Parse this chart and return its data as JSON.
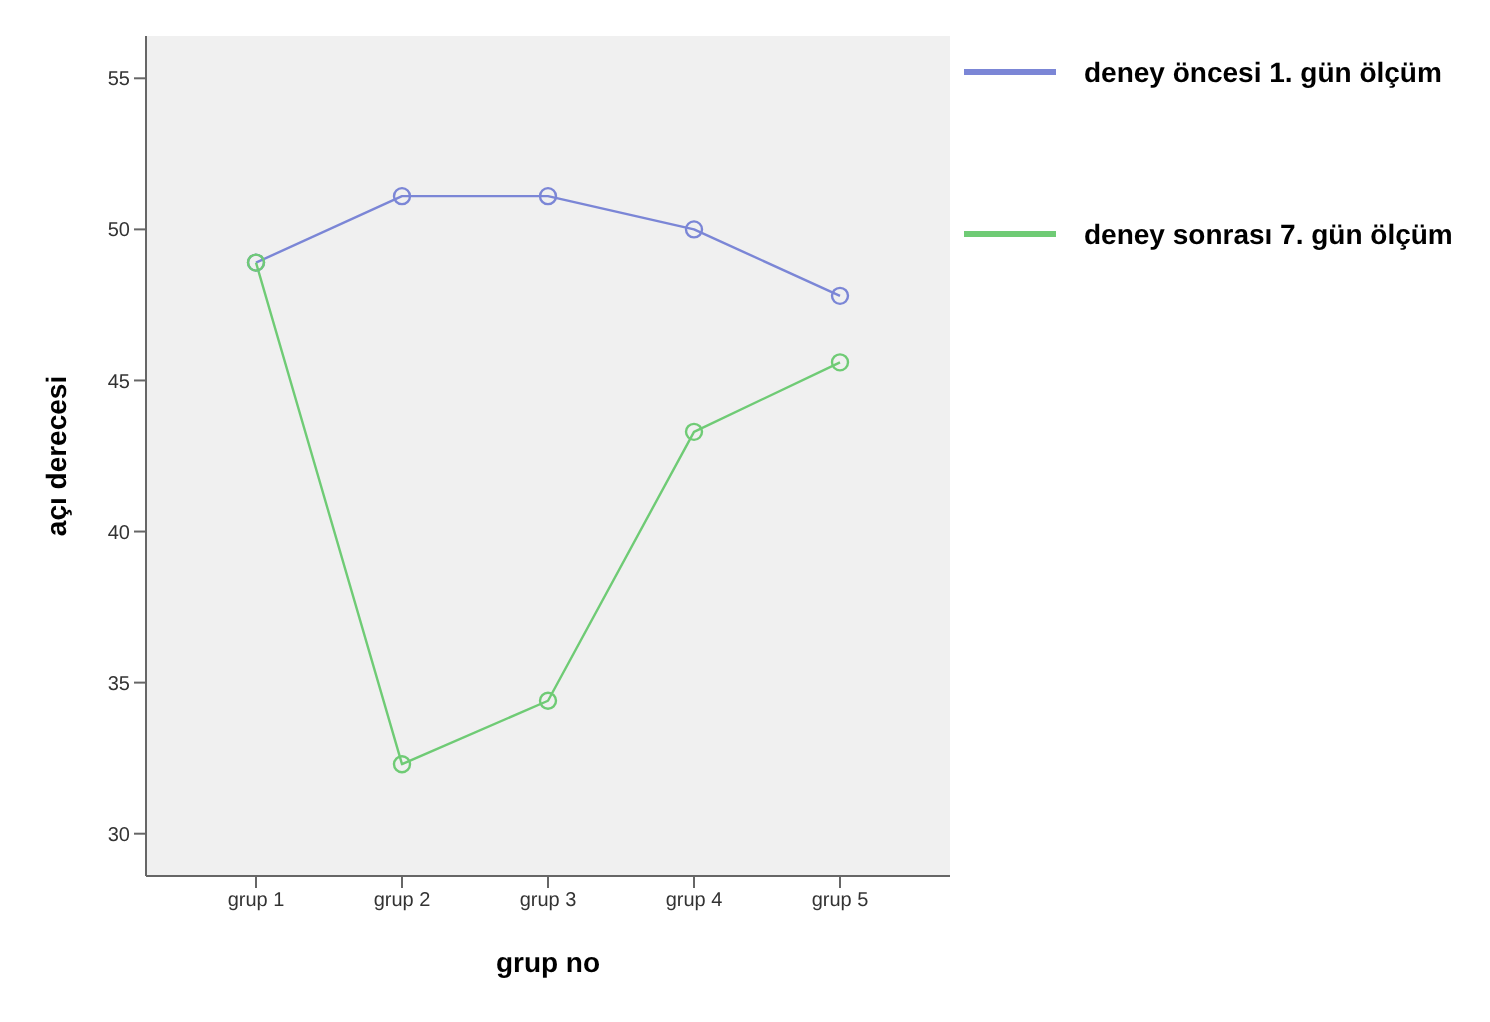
{
  "chart_data": {
    "type": "line",
    "xlabel": "grup no",
    "ylabel": "açı derecesi",
    "categories": [
      "grup 1",
      "grup 2",
      "grup 3",
      "grup 4",
      "grup 5"
    ],
    "series": [
      {
        "name": "deney öncesi 1. gün ölçüm",
        "color": "#7b86d6",
        "values": [
          48.9,
          51.1,
          51.1,
          50.0,
          47.8
        ]
      },
      {
        "name": "deney sonrası 7. gün ölçüm",
        "color": "#6fcb75",
        "values": [
          48.9,
          32.3,
          34.4,
          43.3,
          45.6
        ]
      }
    ],
    "ylim": [
      28.6,
      56.4
    ],
    "yticks": [
      30,
      35,
      40,
      45,
      50,
      55
    ],
    "marker": "circle",
    "legend": "right",
    "grid": false
  }
}
